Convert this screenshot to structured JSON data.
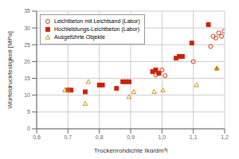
{
  "chart_data": {
    "type": "scatter",
    "xlabel": "Trockenrohdichte [kg/dm³]",
    "ylabel": "Würfeldruckfestigkeit [MPa]",
    "xlim": [
      0.6,
      1.2
    ],
    "ylim": [
      0,
      35
    ],
    "xticks": [
      {
        "value": 0.6,
        "label": "0,6"
      },
      {
        "value": 0.7,
        "label": "0,7"
      },
      {
        "value": 0.8,
        "label": "0,8"
      },
      {
        "value": 0.9,
        "label": "0,9"
      },
      {
        "value": 1.0,
        "label": "1,0"
      },
      {
        "value": 1.1,
        "label": "1,1"
      },
      {
        "value": 1.2,
        "label": "1,2"
      }
    ],
    "yticks": [
      0,
      5,
      10,
      15,
      20,
      25,
      30,
      35
    ],
    "grid": true,
    "legend": "upper left",
    "series": [
      {
        "name": "Leichtbeton mit Leichtsand (Labor)",
        "color": "#cc2200",
        "marker": "circle_open",
        "x": [
          0.98,
          0.99,
          1.0,
          1.01,
          1.1,
          1.155,
          1.163,
          1.172,
          1.181,
          1.19,
          1.198
        ],
        "values": [
          16.0,
          16.5,
          17.5,
          15.8,
          20.0,
          24.5,
          27.5,
          27.0,
          28.5,
          27.5,
          29.0
        ]
      },
      {
        "name": "Hochleistungs-Leichtbeton (Labor)",
        "color": "#cc2200",
        "marker": "square",
        "x": [
          0.7,
          0.71,
          0.755,
          0.8,
          0.81,
          0.855,
          0.875,
          0.885,
          0.895,
          0.97,
          0.98,
          0.99,
          1.045,
          1.055,
          1.065,
          1.095,
          1.148
        ],
        "values": [
          11.5,
          11.5,
          11.0,
          13.0,
          13.0,
          12.0,
          14.0,
          14.0,
          14.0,
          17.0,
          17.5,
          16.5,
          21.0,
          21.5,
          21.5,
          25.5,
          31.0
        ]
      },
      {
        "name": "Ausgeführte Objekte",
        "color": "#cc8800",
        "marker": "triangle_open",
        "x": [
          0.69,
          0.7,
          0.755,
          0.765,
          0.895,
          0.91,
          0.975,
          1.003,
          1.11,
          1.175
        ],
        "values": [
          11.5,
          11.5,
          7.5,
          14.0,
          9.5,
          11.0,
          11.0,
          11.5,
          13.0,
          18.0
        ]
      },
      {
        "color": "#cc8800",
        "marker": "triangle",
        "x": [
          1.175
        ],
        "values": [
          18.0
        ]
      }
    ]
  }
}
